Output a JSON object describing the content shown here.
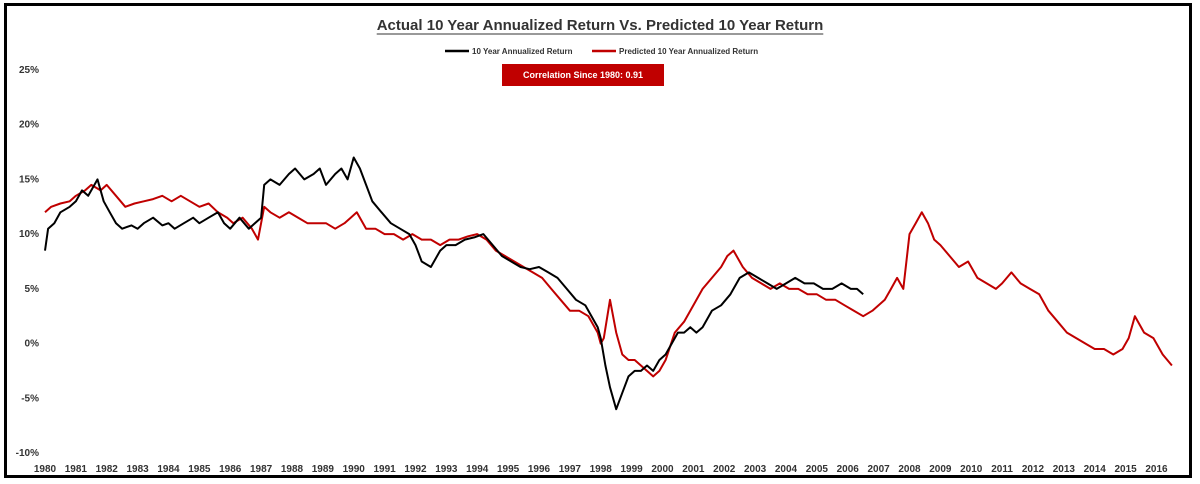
{
  "chart_data": {
    "type": "line",
    "title": "Actual 10 Year Annualized Return Vs. Predicted 10 Year Return",
    "annotation": "Correlation Since 1980: 0.91",
    "xlabel": "",
    "ylabel": "",
    "xlim": [
      1980,
      2016.6
    ],
    "ylim": [
      -10,
      25
    ],
    "x_ticks": [
      1980,
      1981,
      1982,
      1983,
      1984,
      1985,
      1986,
      1987,
      1988,
      1989,
      1990,
      1991,
      1992,
      1993,
      1994,
      1995,
      1996,
      1997,
      1998,
      1999,
      2000,
      2001,
      2002,
      2003,
      2004,
      2005,
      2006,
      2007,
      2008,
      2009,
      2010,
      2011,
      2012,
      2013,
      2014,
      2015,
      2016
    ],
    "y_ticks": [
      -10,
      -5,
      0,
      5,
      10,
      15,
      20,
      25
    ],
    "y_tick_labels": [
      "-10%",
      "-5%",
      "0%",
      "5%",
      "10%",
      "15%",
      "20%",
      "25%"
    ],
    "legend_position": "top-center",
    "grid": false,
    "colors": {
      "actual": "#000000",
      "predicted": "#c00000",
      "badge": "#c00000"
    },
    "series": [
      {
        "name": "10 Year Annualized Return",
        "color": "#000000",
        "x": [
          1980.0,
          1980.1,
          1980.3,
          1980.5,
          1980.8,
          1981.0,
          1981.2,
          1981.4,
          1981.6,
          1981.7,
          1981.9,
          1982.1,
          1982.3,
          1982.5,
          1982.8,
          1983.0,
          1983.2,
          1983.5,
          1983.8,
          1984.0,
          1984.2,
          1984.5,
          1984.8,
          1985.0,
          1985.3,
          1985.6,
          1985.8,
          1986.0,
          1986.3,
          1986.6,
          1986.8,
          1987.0,
          1987.1,
          1987.3,
          1987.6,
          1987.9,
          1988.1,
          1988.4,
          1988.7,
          1988.9,
          1989.1,
          1989.4,
          1989.6,
          1989.8,
          1990.0,
          1990.2,
          1990.4,
          1990.6,
          1990.9,
          1991.2,
          1991.5,
          1991.8,
          1992.0,
          1992.2,
          1992.5,
          1992.8,
          1993.0,
          1993.3,
          1993.6,
          1993.9,
          1994.2,
          1994.5,
          1994.8,
          1995.1,
          1995.4,
          1995.7,
          1996.0,
          1996.3,
          1996.6,
          1996.9,
          1997.2,
          1997.5,
          1997.7,
          1997.9,
          1998.0,
          1998.15,
          1998.3,
          1998.5,
          1998.7,
          1998.9,
          1999.1,
          1999.3,
          1999.5,
          1999.7,
          1999.9,
          2000.1,
          2000.3,
          2000.5,
          2000.7,
          2000.9,
          2001.1,
          2001.3,
          2001.6,
          2001.9,
          2002.2,
          2002.5,
          2002.8,
          2003.1,
          2003.4,
          2003.7,
          2004.0,
          2004.3,
          2004.6,
          2004.9,
          2005.2,
          2005.5,
          2005.8,
          2006.1,
          2006.3,
          2006.5
        ],
        "y": [
          8.5,
          10.5,
          11.0,
          12.0,
          12.5,
          13.0,
          14.0,
          13.5,
          14.5,
          15.0,
          13.0,
          12.0,
          11.0,
          10.5,
          10.8,
          10.5,
          11.0,
          11.5,
          10.8,
          11.0,
          10.5,
          11.0,
          11.5,
          11.0,
          11.5,
          12.0,
          11.0,
          10.5,
          11.5,
          10.5,
          11.0,
          11.5,
          14.5,
          15.0,
          14.5,
          15.5,
          16.0,
          15.0,
          15.5,
          16.0,
          14.5,
          15.5,
          16.0,
          15.0,
          17.0,
          16.0,
          14.5,
          13.0,
          12.0,
          11.0,
          10.5,
          10.0,
          9.0,
          7.5,
          7.0,
          8.5,
          9.0,
          9.0,
          9.5,
          9.7,
          10.0,
          9.0,
          8.0,
          7.5,
          7.0,
          6.8,
          7.0,
          6.5,
          6.0,
          5.0,
          4.0,
          3.5,
          2.5,
          1.5,
          0.5,
          -2.0,
          -4.0,
          -6.0,
          -4.5,
          -3.0,
          -2.5,
          -2.5,
          -2.0,
          -2.5,
          -1.5,
          -1.0,
          0.0,
          1.0,
          1.0,
          1.5,
          1.0,
          1.5,
          3.0,
          3.5,
          4.5,
          6.0,
          6.5,
          6.0,
          5.5,
          5.0,
          5.5,
          6.0,
          5.5,
          5.5,
          5.0,
          5.0,
          5.5,
          5.0,
          5.0,
          4.5
        ]
      },
      {
        "name": "Predicted 10 Year Annualized Return",
        "color": "#c00000",
        "x": [
          1980.0,
          1980.2,
          1980.5,
          1980.8,
          1981.0,
          1981.3,
          1981.5,
          1981.8,
          1982.0,
          1982.3,
          1982.6,
          1982.9,
          1983.2,
          1983.5,
          1983.8,
          1984.1,
          1984.4,
          1984.7,
          1985.0,
          1985.3,
          1985.6,
          1985.9,
          1986.1,
          1986.4,
          1986.7,
          1986.9,
          1987.1,
          1987.3,
          1987.6,
          1987.9,
          1988.2,
          1988.5,
          1988.8,
          1989.1,
          1989.4,
          1989.7,
          1989.9,
          1990.1,
          1990.4,
          1990.7,
          1991.0,
          1991.3,
          1991.6,
          1991.9,
          1992.2,
          1992.5,
          1992.8,
          1993.1,
          1993.4,
          1993.7,
          1994.0,
          1994.3,
          1994.6,
          1994.9,
          1995.2,
          1995.5,
          1995.8,
          1996.1,
          1996.4,
          1996.7,
          1997.0,
          1997.3,
          1997.6,
          1997.9,
          1998.0,
          1998.1,
          1998.3,
          1998.5,
          1998.7,
          1998.9,
          1999.1,
          1999.3,
          1999.5,
          1999.7,
          1999.9,
          2000.1,
          2000.4,
          2000.7,
          2001.0,
          2001.3,
          2001.6,
          2001.9,
          2002.1,
          2002.3,
          2002.6,
          2002.9,
          2003.2,
          2003.5,
          2003.8,
          2004.1,
          2004.4,
          2004.7,
          2005.0,
          2005.3,
          2005.6,
          2005.9,
          2006.2,
          2006.5,
          2006.8,
          2007.0,
          2007.2,
          2007.4,
          2007.6,
          2007.8,
          2008.0,
          2008.2,
          2008.4,
          2008.6,
          2008.8,
          2009.0,
          2009.3,
          2009.6,
          2009.9,
          2010.2,
          2010.5,
          2010.8,
          2011.0,
          2011.3,
          2011.6,
          2011.9,
          2012.2,
          2012.5,
          2012.8,
          2013.1,
          2013.4,
          2013.7,
          2014.0,
          2014.3,
          2014.6,
          2014.9,
          2015.1,
          2015.3,
          2015.6,
          2015.9,
          2016.2,
          2016.5
        ],
        "y": [
          12.0,
          12.5,
          12.8,
          13.0,
          13.5,
          14.0,
          14.5,
          14.0,
          14.5,
          13.5,
          12.5,
          12.8,
          13.0,
          13.2,
          13.5,
          13.0,
          13.5,
          13.0,
          12.5,
          12.8,
          12.0,
          11.5,
          11.0,
          11.5,
          10.5,
          9.5,
          12.5,
          12.0,
          11.5,
          12.0,
          11.5,
          11.0,
          11.0,
          11.0,
          10.5,
          11.0,
          11.5,
          12.0,
          10.5,
          10.5,
          10.0,
          10.0,
          9.5,
          10.0,
          9.5,
          9.5,
          9.0,
          9.5,
          9.5,
          9.8,
          10.0,
          9.5,
          8.5,
          8.0,
          7.5,
          7.0,
          6.5,
          6.0,
          5.0,
          4.0,
          3.0,
          3.0,
          2.5,
          1.0,
          0.0,
          0.5,
          4.0,
          1.0,
          -1.0,
          -1.5,
          -1.5,
          -2.0,
          -2.5,
          -3.0,
          -2.5,
          -1.5,
          1.0,
          2.0,
          3.5,
          5.0,
          6.0,
          7.0,
          8.0,
          8.5,
          7.0,
          6.0,
          5.5,
          5.0,
          5.5,
          5.0,
          5.0,
          4.5,
          4.5,
          4.0,
          4.0,
          3.5,
          3.0,
          2.5,
          3.0,
          3.5,
          4.0,
          5.0,
          6.0,
          5.0,
          10.0,
          11.0,
          12.0,
          11.0,
          9.5,
          9.0,
          8.0,
          7.0,
          7.5,
          6.0,
          5.5,
          5.0,
          5.5,
          6.5,
          5.5,
          5.0,
          4.5,
          3.0,
          2.0,
          1.0,
          0.5,
          0.0,
          -0.5,
          -0.5,
          -1.0,
          -0.5,
          0.5,
          2.5,
          1.0,
          0.5,
          -1.0,
          -2.0
        ]
      }
    ]
  }
}
